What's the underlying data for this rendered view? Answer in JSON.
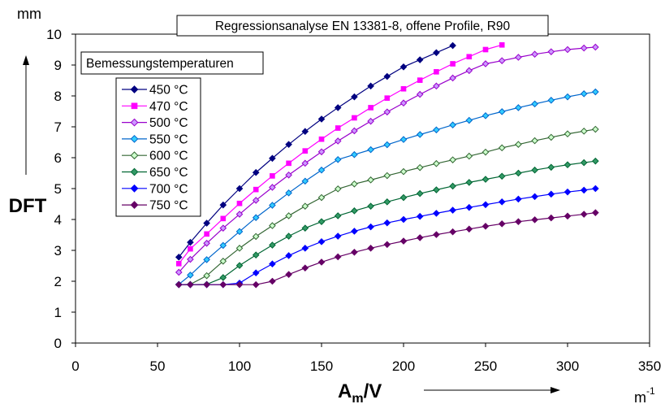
{
  "chart_data": {
    "type": "line",
    "title": "Regressionsanalyse EN 13381-8, offene Profile, R90",
    "ylabel": "DFT",
    "yunit": "mm",
    "xlabel_main": "A",
    "xlabel_sub": "m",
    "xlabel_tail": "/V",
    "xunit_base": "m",
    "xunit_exp": "-1",
    "xlim": [
      0,
      350
    ],
    "ylim": [
      0,
      10
    ],
    "xticks": [
      "0",
      "50",
      "100",
      "150",
      "200",
      "250",
      "300",
      "350"
    ],
    "yticks": [
      "0",
      "1",
      "2",
      "3",
      "4",
      "5",
      "6",
      "7",
      "8",
      "9",
      "10"
    ],
    "grid": true,
    "legend_title": "Bemessungstemperaturen",
    "legend_position": "top-left",
    "series": [
      {
        "name": "450 °C",
        "color": "#000080",
        "marker": "diamond",
        "x": [
          63,
          70,
          80,
          90,
          100,
          110,
          120,
          130,
          140,
          150,
          160,
          170,
          180,
          190,
          200,
          210,
          220,
          230
        ],
        "y": [
          2.78,
          3.26,
          3.88,
          4.47,
          5.0,
          5.52,
          5.98,
          6.43,
          6.85,
          7.25,
          7.62,
          7.97,
          8.32,
          8.63,
          8.94,
          9.17,
          9.4,
          9.63
        ]
      },
      {
        "name": "470 °C",
        "color": "#FF00FF",
        "marker": "square",
        "x": [
          63,
          70,
          80,
          90,
          100,
          110,
          120,
          130,
          140,
          150,
          160,
          170,
          180,
          190,
          200,
          210,
          220,
          230,
          240,
          250,
          260
        ],
        "y": [
          2.57,
          3.05,
          3.53,
          4.03,
          4.52,
          4.97,
          5.41,
          5.82,
          6.22,
          6.6,
          6.96,
          7.29,
          7.62,
          7.93,
          8.23,
          8.51,
          8.78,
          9.04,
          9.27,
          9.5,
          9.65
        ]
      },
      {
        "name": "500 °C",
        "color": "#CC99FF",
        "marker": "diamond-outline",
        "edge": "#9900CC",
        "x": [
          63,
          70,
          80,
          90,
          100,
          110,
          120,
          130,
          140,
          150,
          160,
          170,
          180,
          190,
          200,
          210,
          220,
          230,
          240,
          250,
          260,
          270,
          280,
          290,
          300,
          310,
          317
        ],
        "y": [
          2.29,
          2.71,
          3.23,
          3.72,
          4.17,
          4.62,
          5.04,
          5.44,
          5.82,
          6.19,
          6.54,
          6.87,
          7.18,
          7.48,
          7.77,
          8.05,
          8.32,
          8.58,
          8.82,
          9.04,
          9.14,
          9.25,
          9.35,
          9.43,
          9.5,
          9.55,
          9.58
        ]
      },
      {
        "name": "550 °C",
        "color": "#33CCFF",
        "marker": "diamond-outline",
        "edge": "#0066CC",
        "x": [
          63,
          70,
          80,
          90,
          100,
          110,
          120,
          130,
          140,
          150,
          160,
          170,
          180,
          190,
          200,
          210,
          220,
          230,
          240,
          250,
          260,
          270,
          280,
          290,
          300,
          310,
          317
        ],
        "y": [
          1.9,
          2.2,
          2.7,
          3.16,
          3.61,
          4.06,
          4.46,
          4.86,
          5.24,
          5.6,
          5.94,
          6.1,
          6.26,
          6.42,
          6.59,
          6.75,
          6.9,
          7.06,
          7.21,
          7.36,
          7.49,
          7.62,
          7.74,
          7.86,
          7.97,
          8.07,
          8.13
        ]
      },
      {
        "name": "600 °C",
        "color": "#CCFFCC",
        "marker": "diamond-outline",
        "edge": "#336633",
        "x": [
          63,
          70,
          80,
          90,
          100,
          110,
          120,
          130,
          140,
          150,
          160,
          170,
          180,
          190,
          200,
          210,
          220,
          230,
          240,
          250,
          260,
          270,
          280,
          290,
          300,
          310,
          317
        ],
        "y": [
          1.89,
          1.9,
          2.18,
          2.65,
          3.07,
          3.45,
          3.8,
          4.12,
          4.43,
          4.71,
          4.99,
          5.15,
          5.28,
          5.42,
          5.55,
          5.68,
          5.81,
          5.93,
          6.05,
          6.18,
          6.32,
          6.43,
          6.55,
          6.66,
          6.77,
          6.86,
          6.92
        ]
      },
      {
        "name": "650 °C",
        "color": "#339966",
        "marker": "diamond",
        "edge": "#006633",
        "x": [
          63,
          70,
          80,
          90,
          100,
          110,
          120,
          130,
          140,
          150,
          160,
          170,
          180,
          190,
          200,
          210,
          220,
          230,
          240,
          250,
          260,
          270,
          280,
          290,
          300,
          310,
          317
        ],
        "y": [
          1.89,
          1.89,
          1.9,
          2.12,
          2.51,
          2.85,
          3.17,
          3.46,
          3.72,
          3.93,
          4.12,
          4.28,
          4.43,
          4.57,
          4.71,
          4.84,
          4.96,
          5.08,
          5.2,
          5.3,
          5.4,
          5.5,
          5.6,
          5.69,
          5.77,
          5.84,
          5.89
        ]
      },
      {
        "name": "700 °C",
        "color": "#0000FF",
        "marker": "diamond",
        "x": [
          63,
          70,
          80,
          90,
          100,
          110,
          120,
          130,
          140,
          150,
          160,
          170,
          180,
          190,
          200,
          210,
          220,
          230,
          240,
          250,
          260,
          270,
          280,
          290,
          300,
          310,
          317
        ],
        "y": [
          1.89,
          1.89,
          1.89,
          1.89,
          1.94,
          2.27,
          2.56,
          2.83,
          3.07,
          3.28,
          3.46,
          3.62,
          3.76,
          3.89,
          4.0,
          4.1,
          4.2,
          4.3,
          4.39,
          4.48,
          4.57,
          4.66,
          4.74,
          4.82,
          4.89,
          4.95,
          5.0
        ]
      },
      {
        "name": "750 °C",
        "color": "#660066",
        "marker": "diamond",
        "x": [
          63,
          70,
          80,
          90,
          100,
          110,
          120,
          130,
          140,
          150,
          160,
          170,
          180,
          190,
          200,
          210,
          220,
          230,
          240,
          250,
          260,
          270,
          280,
          290,
          300,
          310,
          317
        ],
        "y": [
          1.89,
          1.89,
          1.89,
          1.89,
          1.89,
          1.89,
          2.0,
          2.22,
          2.43,
          2.62,
          2.79,
          2.94,
          3.07,
          3.19,
          3.3,
          3.41,
          3.51,
          3.6,
          3.69,
          3.78,
          3.86,
          3.93,
          3.99,
          4.05,
          4.11,
          4.17,
          4.22
        ]
      }
    ]
  }
}
